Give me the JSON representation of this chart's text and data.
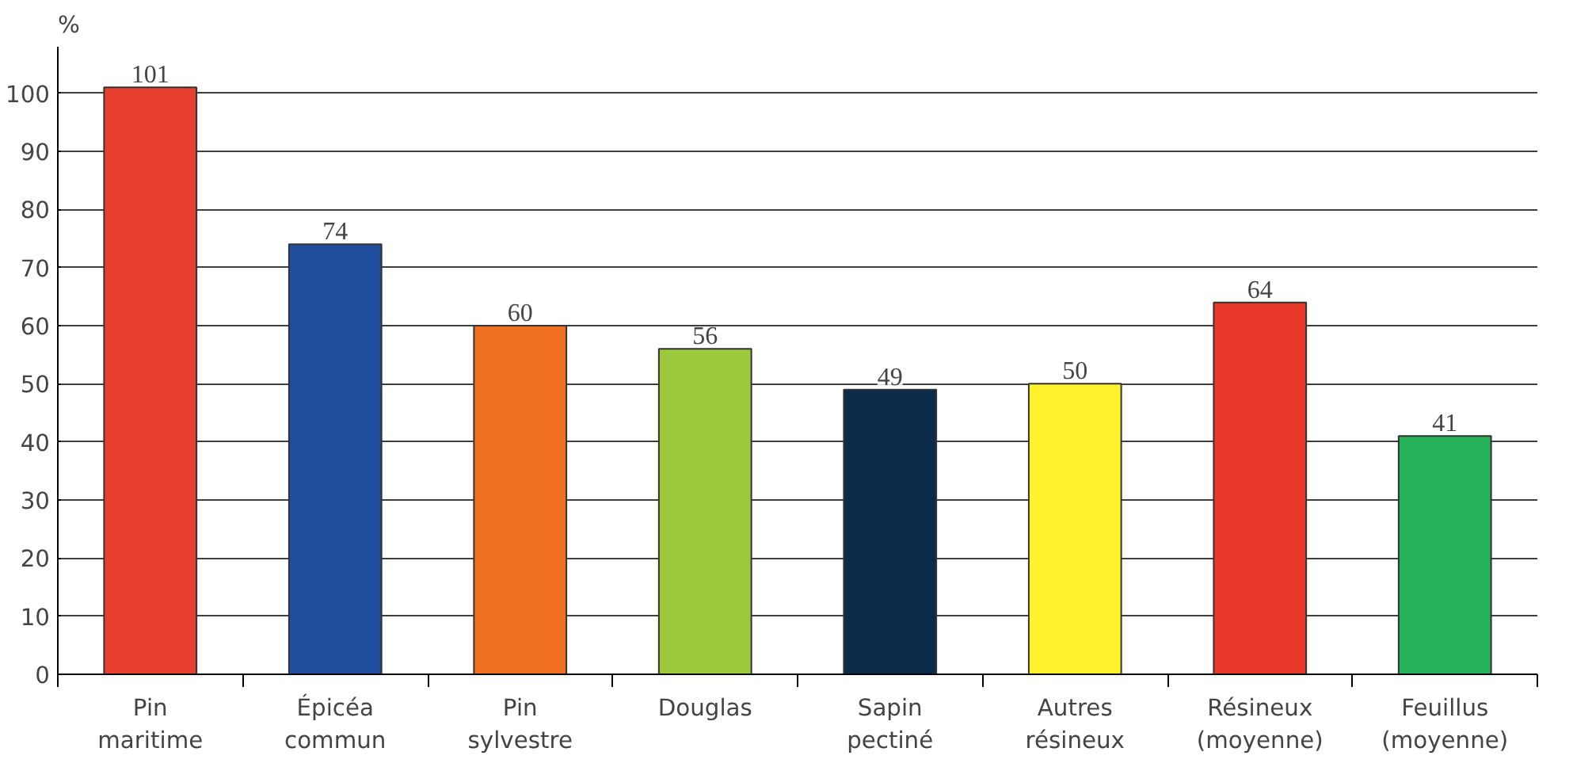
{
  "chart_data": {
    "type": "bar",
    "ylabel": "%",
    "categories": [
      "Pin maritime",
      "Épicéa commun",
      "Pin sylvestre",
      "Douglas",
      "Sapin pectiné",
      "Autres résineux",
      "Résineux (moyenne)",
      "Feuillus (moyenne)"
    ],
    "values": [
      101,
      74,
      60,
      56,
      49,
      50,
      64,
      41
    ],
    "colors": [
      "#e8402e",
      "#1f4e9e",
      "#f07022",
      "#9bc83c",
      "#0c2a4a",
      "#fff12a",
      "#e8382a",
      "#27b05a"
    ],
    "ylim": [
      0,
      108
    ],
    "yticks": [
      0,
      10,
      20,
      30,
      40,
      50,
      60,
      70,
      80,
      90,
      100
    ],
    "grid": "y",
    "data_labels": true
  }
}
